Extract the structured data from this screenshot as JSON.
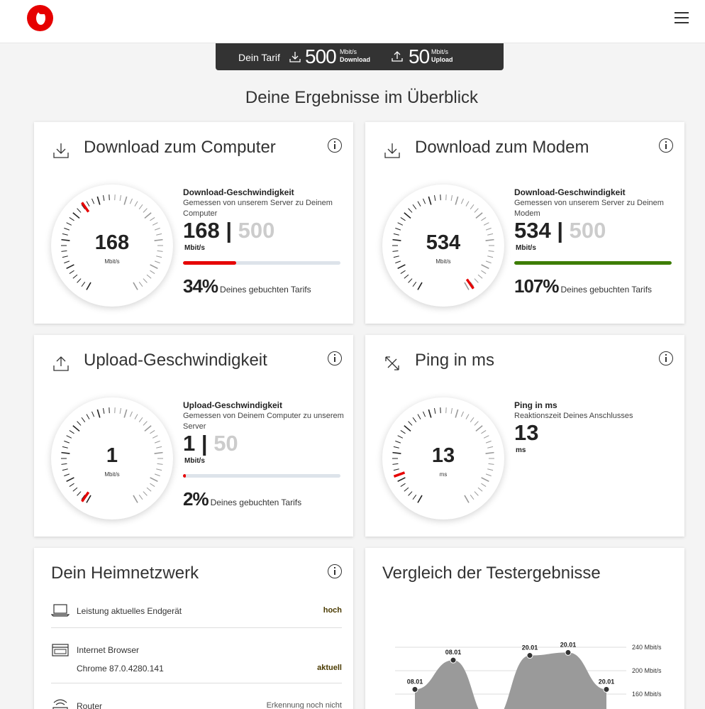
{
  "header": {
    "logo_icon": "vodafone-logo-icon",
    "menu_icon": "hamburger-menu-icon"
  },
  "tarif": {
    "label": "Dein Tarif",
    "download_value": "500",
    "download_unit": "Mbit/s",
    "download_label": "Download",
    "upload_value": "50",
    "upload_unit": "Mbit/s",
    "upload_label": "Upload"
  },
  "heading": "Deine Ergebnisse im Überblick",
  "cards": {
    "download_computer": {
      "title": "Download zum Computer",
      "icon": "download-icon",
      "gauge_value": "168",
      "gauge_unit": "Mbit/s",
      "stat_label": "Download-Geschwindigkeit",
      "stat_desc": "Gemessen von unserem Server zu Deinem Computer",
      "value": "168",
      "sep": "|",
      "max": "500",
      "unit": "Mbit/s",
      "percent_text": "34%",
      "percent_caption": "Deines gebuchten Tarifs",
      "fraction": 0.336,
      "bar_color": "#e60000"
    },
    "download_modem": {
      "title": "Download zum Modem",
      "icon": "download-icon",
      "gauge_value": "534",
      "gauge_unit": "Mbit/s",
      "stat_label": "Download-Geschwindigkeit",
      "stat_desc": "Gemessen von unserem Server zu Deinem Modem",
      "value": "534",
      "sep": "|",
      "max": "500",
      "unit": "Mbit/s",
      "percent_text": "107%",
      "percent_caption": "Deines gebuchten Tarifs",
      "fraction": 1.0,
      "bar_color": "#3d7d00"
    },
    "upload": {
      "title": "Upload-Geschwindigkeit",
      "icon": "upload-icon",
      "gauge_value": "1",
      "gauge_unit": "Mbit/s",
      "stat_label": "Upload-Geschwindigkeit",
      "stat_desc": "Gemessen von Deinem Computer zu unserem Server",
      "value": "1",
      "sep": "|",
      "max": "50",
      "unit": "Mbit/s",
      "percent_text": "2%",
      "percent_caption": "Deines gebuchten Tarifs",
      "fraction": 0.02,
      "bar_color": "#e60000"
    },
    "ping": {
      "title": "Ping in ms",
      "icon": "ping-arrows-icon",
      "gauge_value": "13",
      "gauge_unit": "ms",
      "stat_label": "Ping in ms",
      "stat_desc": "Reaktionszeit Deines Anschlusses",
      "value": "13",
      "unit": "ms"
    }
  },
  "heimnetz": {
    "title": "Dein Heimnetzwerk",
    "rows": [
      {
        "icon": "laptop-icon",
        "label": "Leistung aktuelles Endgerät",
        "value": "hoch"
      },
      {
        "icon": "browser-icon",
        "label": "Internet Browser",
        "sub": "Chrome 87.0.4280.141",
        "value": "aktuell"
      },
      {
        "icon": "wifi-router-icon",
        "label": "Router",
        "value": "Erkennung noch nicht"
      }
    ]
  },
  "vergleich": {
    "title": "Vergleich der Testergebnisse"
  },
  "chart_data": {
    "type": "area",
    "title": "Vergleich der Testergebnisse",
    "x": [
      "08.01",
      "08.01",
      "20.01",
      "20.01",
      "20.01",
      "20.01"
    ],
    "values": [
      168,
      218,
      112,
      226,
      231,
      168
    ],
    "y_ticks": [
      "240 Mbit/s",
      "200 Mbit/s",
      "160 Mbit/s"
    ],
    "y_tick_values": [
      240,
      200,
      160
    ],
    "ylim": [
      120,
      250
    ],
    "color": "#9a9a9a"
  }
}
